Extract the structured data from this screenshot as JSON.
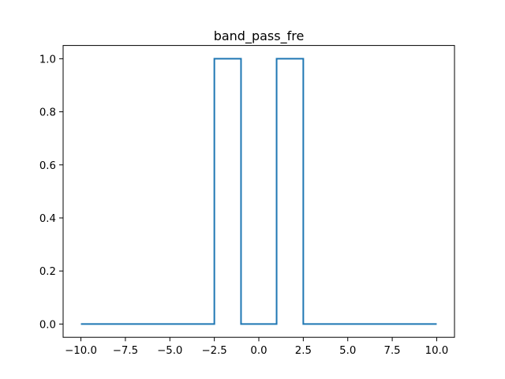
{
  "chart_data": {
    "type": "line",
    "title": "band_pass_fre",
    "xlabel": "",
    "ylabel": "",
    "xlim": [
      -11.0,
      11.0
    ],
    "ylim": [
      -0.05,
      1.05
    ],
    "grid": false,
    "x_ticks": [
      -10.0,
      -7.5,
      -5.0,
      -2.5,
      0.0,
      2.5,
      5.0,
      7.5,
      10.0
    ],
    "x_tick_labels": [
      "−10.0",
      "−7.5",
      "−5.0",
      "−2.5",
      "0.0",
      "2.5",
      "5.0",
      "7.5",
      "10.0"
    ],
    "y_ticks": [
      0.0,
      0.2,
      0.4,
      0.6,
      0.8,
      1.0
    ],
    "y_tick_labels": [
      "0.0",
      "0.2",
      "0.4",
      "0.6",
      "0.8",
      "1.0"
    ],
    "series": [
      {
        "color": "#1f77b4",
        "x": [
          -10.0,
          -2.5,
          -2.5,
          -1.0,
          -1.0,
          1.0,
          1.0,
          2.5,
          2.5,
          10.0
        ],
        "y": [
          0,
          0,
          1,
          1,
          0,
          0,
          1,
          1,
          0,
          0
        ]
      }
    ]
  }
}
